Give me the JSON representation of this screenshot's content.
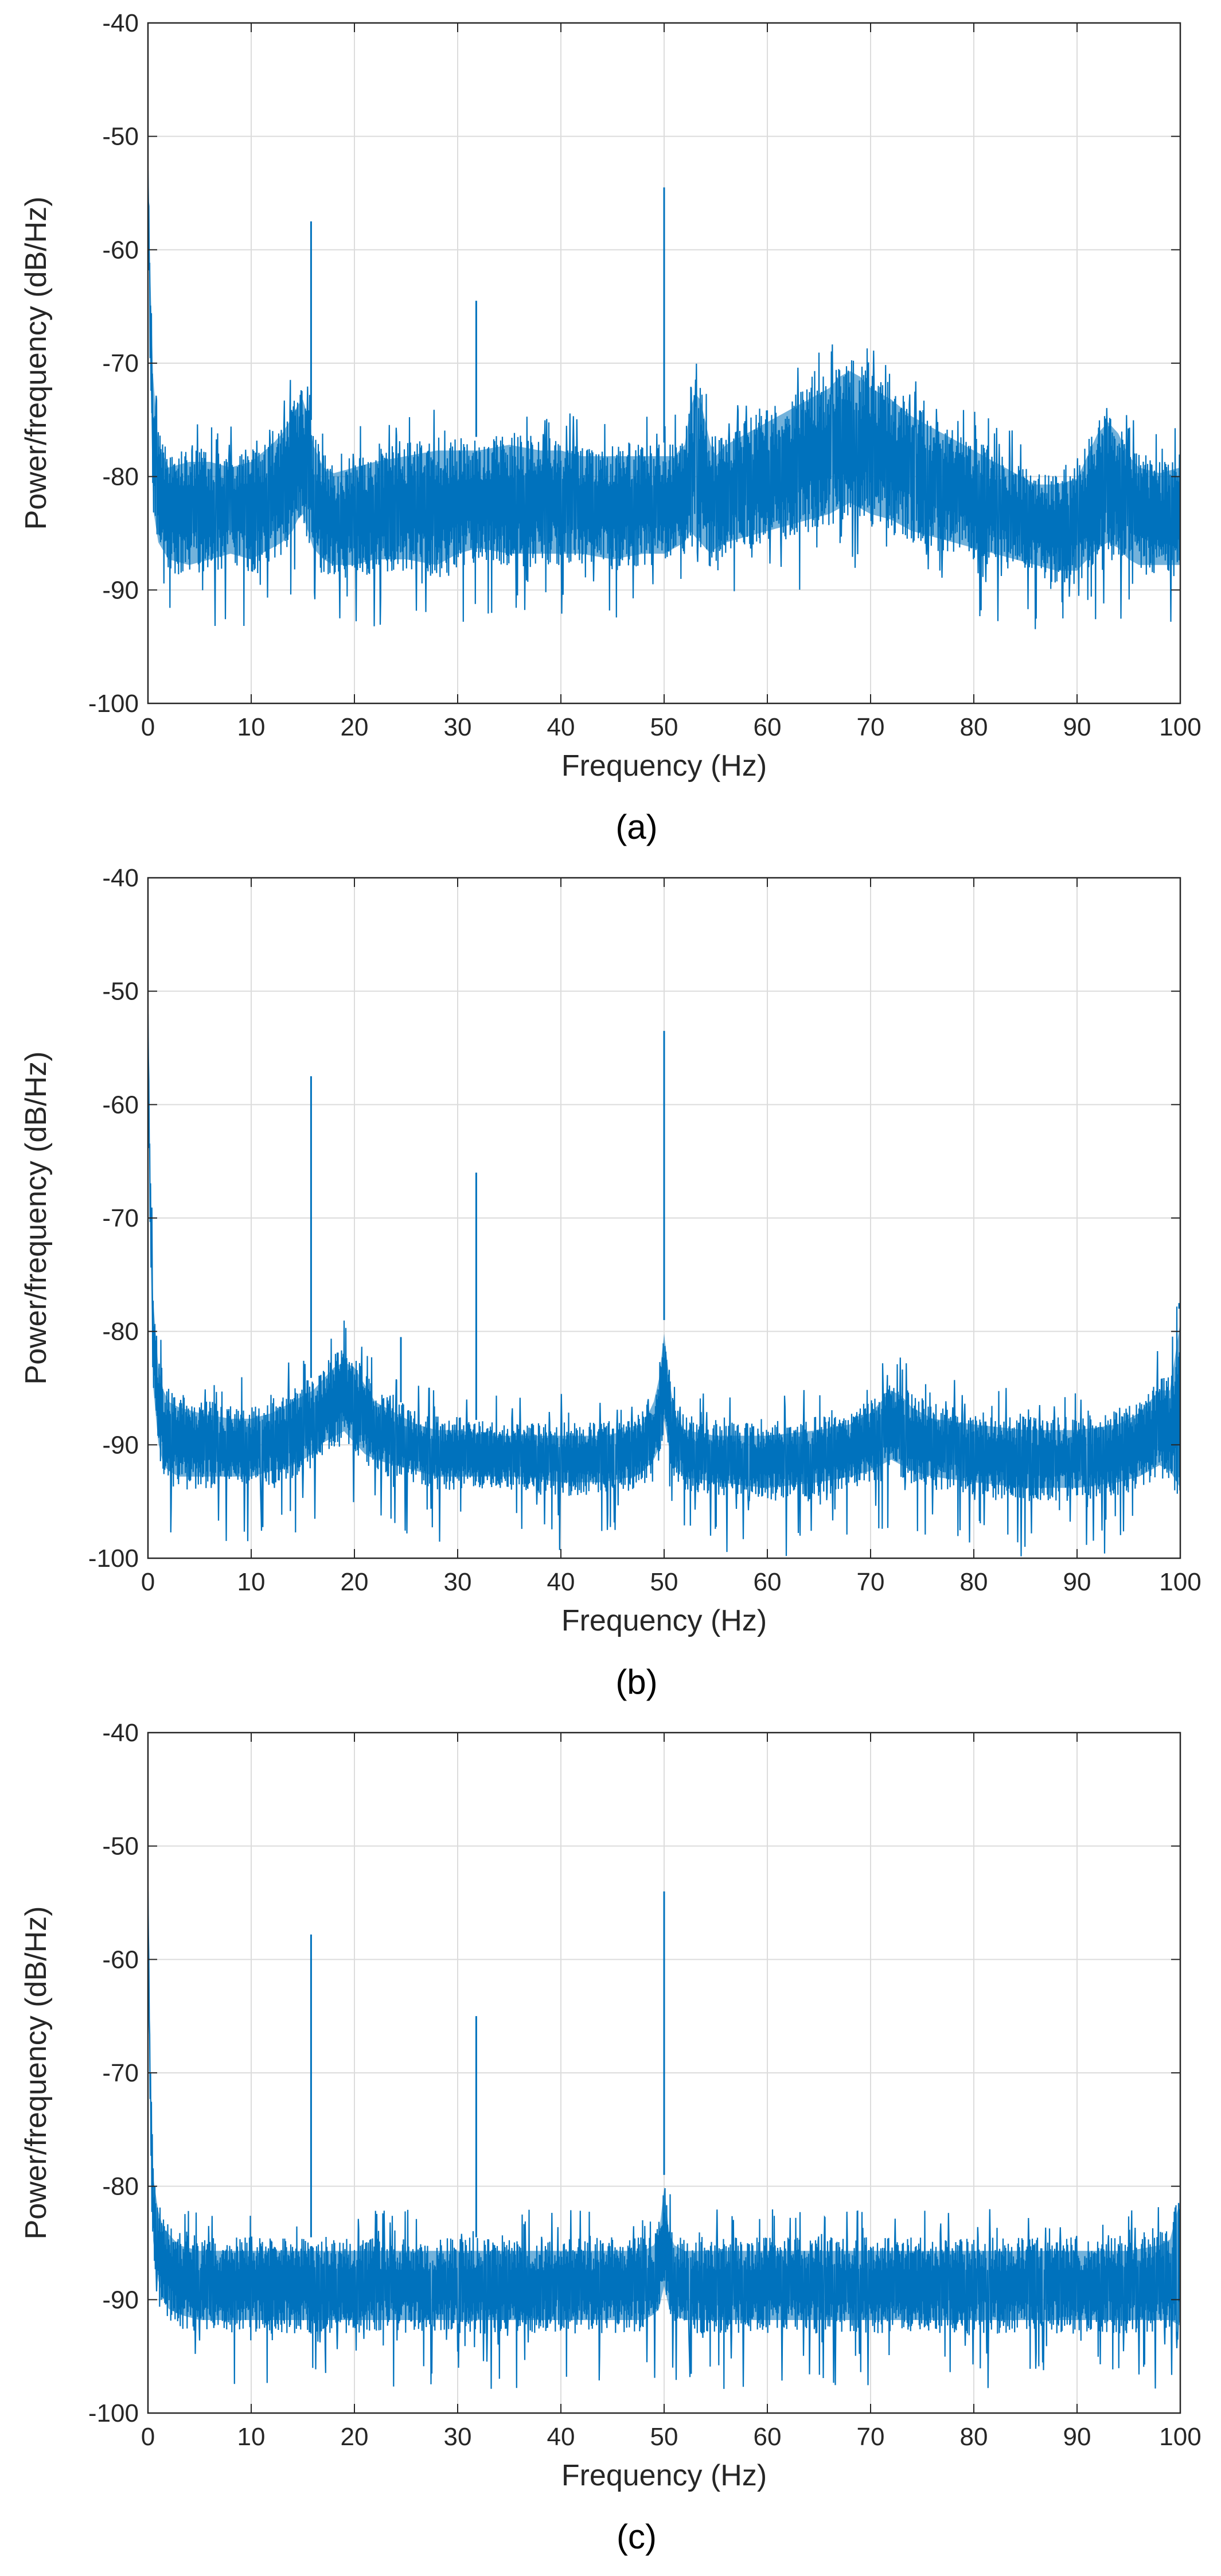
{
  "colors": {
    "trace": "#0072BD",
    "grid": "#dcdcdc",
    "axis": "#262626",
    "background": "#ffffff"
  },
  "chart_data": [
    {
      "type": "line",
      "caption": "(a)",
      "title": "",
      "xlabel": "Frequency (Hz)",
      "ylabel": "Power/frequency (dB/Hz)",
      "xlim": [
        0,
        100
      ],
      "ylim": [
        -100,
        -40
      ],
      "xticks": [
        0,
        10,
        20,
        30,
        40,
        50,
        60,
        70,
        80,
        90,
        100
      ],
      "yticks": [
        -100,
        -90,
        -80,
        -70,
        -60,
        -50,
        -40
      ],
      "grid": true,
      "series": [
        {
          "x": [
            0,
            0.2,
            0.5,
            1,
            2,
            4,
            6,
            8,
            10,
            12,
            13,
            14,
            14.5,
            15,
            15.5,
            16,
            16.5,
            17,
            18,
            20,
            22,
            25,
            28,
            30,
            32,
            35,
            38,
            40,
            42,
            45,
            48,
            50,
            51,
            52,
            52.5,
            53,
            53.5,
            54,
            54.5,
            55,
            56,
            58,
            60,
            62,
            64,
            66,
            67,
            68,
            69,
            70,
            72,
            74,
            76,
            78,
            80,
            82,
            84,
            86,
            88,
            90,
            91,
            92,
            93,
            94,
            95,
            96,
            98,
            100
          ],
          "upper": [
            -53,
            -60,
            -70,
            -76,
            -78,
            -77.5,
            -77.5,
            -78,
            -77.5,
            -76,
            -75,
            -73.5,
            -72.5,
            -72,
            -73.5,
            -76,
            -77,
            -78,
            -78.5,
            -78,
            -77.5,
            -77,
            -76.5,
            -76.5,
            -76.5,
            -76,
            -76.5,
            -76.5,
            -77,
            -77,
            -77,
            -77,
            -77,
            -76,
            -73,
            -71.5,
            -72,
            -74,
            -76,
            -77,
            -76,
            -75,
            -74,
            -73,
            -72,
            -71,
            -70,
            -69.5,
            -70,
            -71,
            -72,
            -73.5,
            -74.5,
            -75.5,
            -76.5,
            -77.5,
            -78.5,
            -79.5,
            -79.5,
            -79,
            -77,
            -75,
            -74,
            -75,
            -77,
            -78,
            -78.5,
            -78
          ],
          "lower": [
            -53,
            -70,
            -84,
            -87,
            -88.5,
            -89,
            -88.5,
            -88,
            -88.5,
            -87.5,
            -87,
            -86,
            -85,
            -84.5,
            -86,
            -87.5,
            -88,
            -88.5,
            -89,
            -89,
            -88.5,
            -88.5,
            -89,
            -88,
            -87.5,
            -88,
            -88,
            -88,
            -88,
            -88.5,
            -88,
            -88,
            -87.5,
            -87,
            -86,
            -86.5,
            -87,
            -87.5,
            -88,
            -87.5,
            -87,
            -86.5,
            -86,
            -85.5,
            -85,
            -84.5,
            -84,
            -83.5,
            -84,
            -84.5,
            -85,
            -86,
            -86.5,
            -87,
            -87.5,
            -88,
            -88.5,
            -89,
            -89.5,
            -89.5,
            -88.5,
            -87.5,
            -87,
            -87.5,
            -88.5,
            -89,
            -89,
            -89
          ],
          "peaks": [
            {
              "f": 15.8,
              "db": -57.5
            },
            {
              "f": 31.8,
              "db": -64.5
            },
            {
              "f": 50,
              "db": -54.5
            }
          ]
        }
      ]
    },
    {
      "type": "line",
      "caption": "(b)",
      "title": "",
      "xlabel": "Frequency (Hz)",
      "ylabel": "Power/frequency (dB/Hz)",
      "xlim": [
        0,
        100
      ],
      "ylim": [
        -100,
        -40
      ],
      "xticks": [
        0,
        10,
        20,
        30,
        40,
        50,
        60,
        70,
        80,
        90,
        100
      ],
      "yticks": [
        -100,
        -90,
        -80,
        -70,
        -60,
        -50,
        -40
      ],
      "grid": true,
      "series": [
        {
          "x": [
            0,
            0.2,
            0.5,
            1,
            1.5,
            2,
            3,
            5,
            8,
            10,
            12,
            14,
            16,
            17,
            18,
            19,
            20,
            21,
            22,
            24,
            26,
            28,
            30,
            33,
            36,
            40,
            44,
            47,
            48,
            49,
            49.5,
            50,
            50.5,
            51,
            52,
            55,
            60,
            65,
            68,
            70,
            71,
            72,
            73,
            74,
            76,
            80,
            85,
            90,
            94,
            96,
            97,
            98,
            99,
            100
          ],
          "upper": [
            -52,
            -65,
            -76,
            -82,
            -84,
            -85,
            -85.5,
            -86,
            -86.5,
            -86.5,
            -86,
            -85,
            -84,
            -83,
            -82,
            -81.5,
            -82,
            -83.5,
            -85,
            -86,
            -87,
            -87.5,
            -87.5,
            -88,
            -88,
            -88,
            -88,
            -87.5,
            -87,
            -85,
            -83,
            -79,
            -83,
            -86,
            -87.5,
            -88,
            -88,
            -87.5,
            -87,
            -86,
            -85,
            -84,
            -84.5,
            -85.5,
            -86.5,
            -87,
            -87.5,
            -87.5,
            -87,
            -86,
            -85,
            -84,
            -84,
            -78
          ],
          "lower": [
            -52,
            -72,
            -86,
            -91,
            -93,
            -93.5,
            -94,
            -94,
            -94,
            -94,
            -93.5,
            -93,
            -92,
            -91,
            -90.5,
            -90,
            -91,
            -92,
            -92.5,
            -93,
            -93.5,
            -94,
            -94,
            -94,
            -94,
            -94.5,
            -94.5,
            -94,
            -93.5,
            -92.5,
            -91.5,
            -89,
            -91.5,
            -93,
            -94,
            -94.5,
            -95,
            -94.5,
            -94,
            -93.5,
            -93,
            -92.5,
            -93,
            -93.5,
            -94,
            -94.5,
            -95,
            -95,
            -94.5,
            -94,
            -93.5,
            -93,
            -93.5,
            -95
          ],
          "peaks": [
            {
              "f": 15.8,
              "db": -57.5
            },
            {
              "f": 24.5,
              "db": -80.5
            },
            {
              "f": 31.8,
              "db": -66
            },
            {
              "f": 50,
              "db": -53.5
            },
            {
              "f": 100,
              "db": -77.5
            }
          ]
        }
      ]
    },
    {
      "type": "line",
      "caption": "(c)",
      "title": "",
      "xlabel": "Frequency (Hz)",
      "ylabel": "Power/frequency (dB/Hz)",
      "xlim": [
        0,
        100
      ],
      "ylim": [
        -100,
        -40
      ],
      "xticks": [
        0,
        10,
        20,
        30,
        40,
        50,
        60,
        70,
        80,
        90,
        100
      ],
      "yticks": [
        -100,
        -90,
        -80,
        -70,
        -60,
        -50,
        -40
      ],
      "grid": true,
      "series": [
        {
          "x": [
            0,
            0.2,
            0.5,
            1,
            1.5,
            2,
            3,
            5,
            10,
            15,
            20,
            25,
            30,
            35,
            40,
            45,
            48,
            49,
            49.5,
            50,
            50.5,
            51,
            52,
            55,
            60,
            65,
            70,
            75,
            80,
            85,
            90,
            95,
            98,
            99,
            100
          ],
          "upper": [
            -54,
            -68,
            -78,
            -81,
            -82.5,
            -83,
            -84,
            -84.5,
            -84.5,
            -84.5,
            -84.5,
            -84.5,
            -84.5,
            -84.5,
            -84.5,
            -84.5,
            -84.5,
            -84,
            -83,
            -79,
            -83,
            -84,
            -84.5,
            -84.5,
            -84.5,
            -84.5,
            -84.5,
            -84.5,
            -84.5,
            -84.5,
            -84.5,
            -84.5,
            -84,
            -83.5,
            -80
          ],
          "lower": [
            -54,
            -74,
            -86,
            -89.5,
            -91,
            -92,
            -92.5,
            -93,
            -93,
            -93,
            -93,
            -93,
            -93,
            -93,
            -93,
            -93,
            -93,
            -92.5,
            -92,
            -90,
            -92,
            -92.5,
            -93,
            -93,
            -93,
            -93,
            -93,
            -93,
            -93,
            -93,
            -93,
            -93,
            -93,
            -93,
            -93.5
          ],
          "peaks": [
            {
              "f": 15.8,
              "db": -57.8
            },
            {
              "f": 31.8,
              "db": -65
            },
            {
              "f": 50,
              "db": -54
            }
          ]
        }
      ]
    }
  ]
}
